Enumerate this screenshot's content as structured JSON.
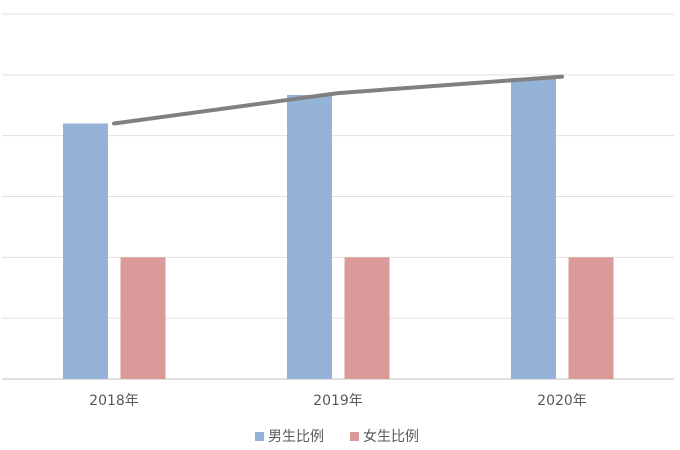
{
  "chart_data": {
    "type": "bar",
    "categories": [
      "2018年",
      "2019年",
      "2020年"
    ],
    "series": [
      {
        "name": "男生比例",
        "color": "#95b3d7",
        "values": [
          4.2,
          4.67,
          4.95
        ]
      },
      {
        "name": "女生比例",
        "color": "#d99a99",
        "values": [
          2.0,
          2.0,
          2.0
        ]
      }
    ],
    "line": {
      "type": "line",
      "color": "#808080",
      "values": [
        4.2,
        4.7,
        4.97
      ]
    },
    "ylim": [
      0,
      6
    ],
    "yticks": [
      0,
      1,
      2,
      3,
      4,
      5,
      6
    ],
    "grid": true
  }
}
